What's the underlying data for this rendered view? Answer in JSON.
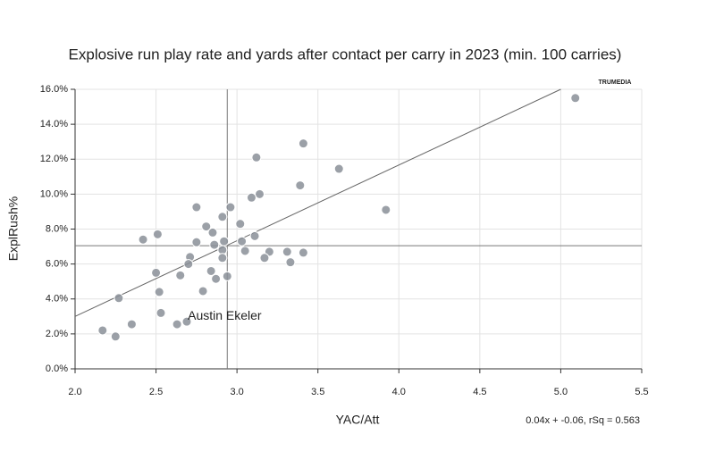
{
  "chart_data": {
    "type": "scatter",
    "title": "Explosive run play rate and yards after contact per carry in 2023 (min. 100 carries)",
    "x_label": "YAC/Att",
    "y_label": "ExplRush%",
    "footnote": "0.04x + -0.06, rSq = 0.563",
    "logo": "TRUMEDIA",
    "color": "#8a8f98",
    "grid": true,
    "xlim": [
      2.0,
      5.5
    ],
    "ylim": [
      0,
      16
    ],
    "xticks": [
      {
        "value": 2.0,
        "label": "2.0"
      },
      {
        "value": 2.5,
        "label": "2.5"
      },
      {
        "value": 3.0,
        "label": "3.0"
      },
      {
        "value": 3.5,
        "label": "3.5"
      },
      {
        "value": 4.0,
        "label": "4.0"
      },
      {
        "value": 4.5,
        "label": "4.5"
      },
      {
        "value": 5.0,
        "label": "5.0"
      },
      {
        "value": 5.5,
        "label": "5.5"
      }
    ],
    "yticks": [
      {
        "value": 0,
        "label": "0.0%"
      },
      {
        "value": 2,
        "label": "2.0%"
      },
      {
        "value": 4,
        "label": "4.0%"
      },
      {
        "value": 6,
        "label": "6.0%"
      },
      {
        "value": 8,
        "label": "8.0%"
      },
      {
        "value": 10,
        "label": "10.0%"
      },
      {
        "value": 12,
        "label": "12.0%"
      },
      {
        "value": 14,
        "label": "14.0%"
      },
      {
        "value": 16,
        "label": "16.0%"
      }
    ],
    "x": [
      5.09,
      3.41,
      3.63,
      3.12,
      3.39,
      3.14,
      3.09,
      3.92,
      2.75,
      2.96,
      2.91,
      2.81,
      3.02,
      2.85,
      2.42,
      2.51,
      3.11,
      2.75,
      2.92,
      3.03,
      2.86,
      3.05,
      2.91,
      3.2,
      3.31,
      3.41,
      2.71,
      3.17,
      2.91,
      3.33,
      2.7,
      2.5,
      2.84,
      2.94,
      2.87,
      2.65,
      2.79,
      2.52,
      2.27,
      2.53,
      2.35,
      2.17,
      2.25,
      2.69,
      2.63
    ],
    "values": [
      15.5,
      12.9,
      11.45,
      12.1,
      10.5,
      10.0,
      9.8,
      9.1,
      9.25,
      9.25,
      8.7,
      8.15,
      8.3,
      7.8,
      7.4,
      7.7,
      7.6,
      7.25,
      7.3,
      7.3,
      7.1,
      6.75,
      6.8,
      6.7,
      6.7,
      6.65,
      6.4,
      6.35,
      6.35,
      6.1,
      6.0,
      5.5,
      5.6,
      5.3,
      5.15,
      5.35,
      4.45,
      4.4,
      4.05,
      3.2,
      2.55,
      2.2,
      1.85,
      2.7,
      2.55
    ],
    "reference_lines": {
      "x": 2.94,
      "y": 7.05
    },
    "trend_line": {
      "x": [
        2.0,
        5.0
      ],
      "y": [
        3.0,
        16.0
      ]
    },
    "annotation": {
      "text": "Austin Ekeler",
      "x": 2.63,
      "y": 2.55
    }
  }
}
